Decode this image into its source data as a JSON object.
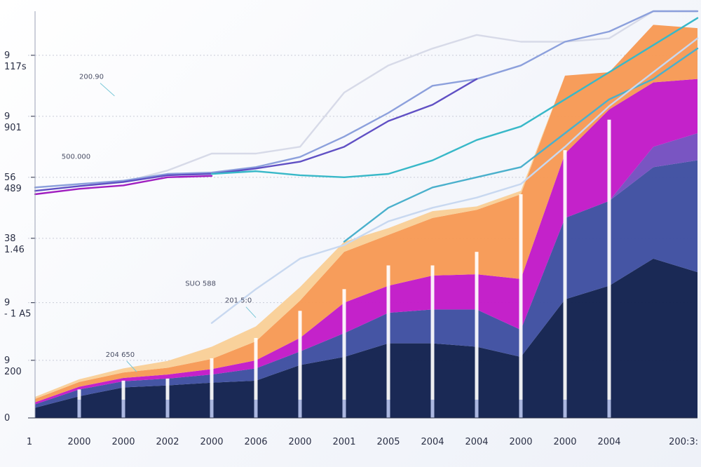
{
  "chart_data": {
    "type": "area",
    "title": "",
    "xlabel": "",
    "ylabel": "",
    "ylim": [
      0,
      600
    ],
    "grid": true,
    "x": [
      0,
      1,
      2,
      3,
      4,
      5,
      6,
      7,
      8,
      9,
      10,
      11,
      12,
      13,
      14,
      15
    ],
    "x_tick_labels": [
      "1",
      "2000",
      "2000",
      "2002",
      "2000",
      "2006",
      "2000",
      "2001",
      "2005",
      "2004",
      "2004",
      "2000",
      "2000",
      "2004",
      "200:3:"
    ],
    "y_ticks": [
      {
        "value": 0,
        "labels": [
          "0"
        ]
      },
      {
        "value": 85,
        "labels": [
          "9",
          "200"
        ]
      },
      {
        "value": 170,
        "labels": [
          "9",
          "- 1 A5"
        ]
      },
      {
        "value": 265,
        "labels": [
          "38",
          "1.46"
        ]
      },
      {
        "value": 355,
        "labels": [
          "56",
          "489"
        ]
      },
      {
        "value": 445,
        "labels": [
          "9",
          "901"
        ]
      },
      {
        "value": 535,
        "labels": [
          "9",
          "117s"
        ]
      }
    ],
    "stacked_series": [
      {
        "name": "navy",
        "color": "#13224f",
        "values": [
          15,
          32,
          45,
          48,
          52,
          55,
          78,
          90,
          110,
          110,
          105,
          90,
          175,
          195,
          235,
          215
        ]
      },
      {
        "name": "blue",
        "color": "#3f4fa1",
        "values": [
          5,
          10,
          9,
          10,
          12,
          18,
          20,
          35,
          45,
          50,
          55,
          40,
          120,
          125,
          135,
          165
        ]
      },
      {
        "name": "purple",
        "color": "#7550c0",
        "values": [
          0,
          0,
          0,
          0,
          0,
          0,
          0,
          0,
          0,
          0,
          0,
          0,
          0,
          0,
          30,
          40
        ]
      },
      {
        "name": "magenta",
        "color": "#c21bc8",
        "values": [
          3,
          4,
          5,
          6,
          8,
          12,
          20,
          45,
          40,
          50,
          52,
          75,
          95,
          135,
          95,
          80
        ]
      },
      {
        "name": "orange",
        "color": "#f79a56",
        "values": [
          5,
          7,
          8,
          10,
          15,
          28,
          55,
          75,
          75,
          85,
          95,
          125,
          115,
          55,
          85,
          75
        ]
      },
      {
        "name": "peach",
        "color": "#f9cf98",
        "values": [
          3,
          4,
          6,
          10,
          18,
          22,
          20,
          15,
          10,
          10,
          5,
          5,
          0,
          0,
          0,
          0
        ]
      }
    ],
    "line_series": [
      {
        "name": "light-gray",
        "color": "#d7dae8",
        "values": [
          340,
          345,
          348,
          365,
          390,
          390,
          400,
          480,
          520,
          545,
          565,
          555,
          555,
          560,
          600,
          600
        ]
      },
      {
        "name": "periwinkle",
        "color": "#8ca0dc",
        "values": [
          340,
          345,
          350,
          360,
          362,
          370,
          385,
          415,
          450,
          490,
          500,
          520,
          555,
          570,
          600,
          600
        ]
      },
      {
        "name": "violet",
        "color": "#6050c4",
        "values": [
          335,
          342,
          348,
          358,
          360,
          368,
          378,
          400,
          438,
          462,
          500,
          null,
          null,
          null,
          null,
          null
        ]
      },
      {
        "name": "magenta-line",
        "color": "#a01fc0",
        "values": [
          330,
          338,
          343,
          355,
          357,
          null,
          null,
          null,
          null,
          null,
          null,
          null,
          null,
          null,
          null,
          null
        ]
      },
      {
        "name": "teal-upper",
        "color": "#38b8c8",
        "values": [
          null,
          null,
          null,
          null,
          360,
          364,
          358,
          355,
          360,
          380,
          410,
          430,
          470,
          510,
          550,
          590
        ]
      },
      {
        "name": "teal-lower",
        "color": "#4ab0cc",
        "values": [
          null,
          null,
          null,
          null,
          null,
          null,
          null,
          260,
          310,
          340,
          355,
          370,
          420,
          470,
          500,
          545
        ]
      },
      {
        "name": "pale-blue",
        "color": "#c8d8f0",
        "values": [
          null,
          null,
          null,
          null,
          140,
          190,
          235,
          255,
          290,
          310,
          325,
          345,
          400,
          460,
          510,
          560
        ]
      }
    ],
    "bars": {
      "color": "#ffffff",
      "x": [
        1,
        2,
        3,
        4,
        5,
        6,
        7,
        8,
        9,
        10,
        11,
        12,
        13,
        14
      ],
      "values": [
        42,
        55,
        58,
        88,
        118,
        158,
        190,
        225,
        225,
        245,
        330,
        395,
        440,
        0
      ]
    },
    "annotations": [
      {
        "text": "200.90",
        "x": 1.0,
        "y": 500,
        "line_to": [
          1.8,
          475
        ]
      },
      {
        "text": "500.000",
        "x": 0.6,
        "y": 382,
        "line_to": null
      },
      {
        "text": "SUO 588",
        "x": 3.4,
        "y": 195,
        "line_to": null
      },
      {
        "text": "201 5:0",
        "x": 4.3,
        "y": 170,
        "line_to": [
          5.0,
          148
        ]
      },
      {
        "text": "204 650",
        "x": 1.6,
        "y": 90,
        "line_to": [
          2.3,
          68
        ]
      }
    ]
  }
}
